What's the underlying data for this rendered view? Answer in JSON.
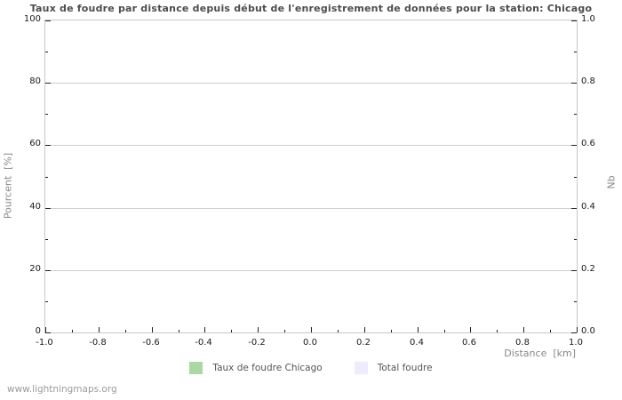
{
  "title": "Taux de foudre par distance depuis début de l'enregistrement de données pour la station: Chicago",
  "footer": "www.lightningmaps.org",
  "colors": {
    "title_text": "#4d4d4d",
    "grid": "#cdcdcd",
    "plot_border": "#c8c8c8",
    "tick_mark": "#222222",
    "tick_label": "#1a1a1a",
    "axis_label": "#878787",
    "legend_text": "#555555",
    "footer_text": "#9b9b9b",
    "series_rate_green": "#abd7a5",
    "series_total_lavender": "#ececfa"
  },
  "axes": {
    "ylabel_left": "Pourcent  [%]",
    "ylabel_right": "Nb",
    "xlabel": "Distance  [km]"
  },
  "legend": {
    "items": [
      {
        "label": "Taux de foudre Chicago",
        "color": "#abd7a5"
      },
      {
        "label": "Total foudre",
        "color": "#ececfa"
      }
    ]
  },
  "chart_data": {
    "type": "line",
    "title": "Taux de foudre par distance depuis début de l'enregistrement de données pour la station: Chicago",
    "xlabel": "Distance  [km]",
    "ylabel_left": "Pourcent  [%]",
    "ylabel_right": "Nb",
    "xlim": [
      -1.0,
      1.0
    ],
    "ylim_left": [
      0,
      100
    ],
    "ylim_right": [
      0.0,
      1.0
    ],
    "x_major_ticks": [
      "-1.0",
      "-0.8",
      "-0.6",
      "-0.4",
      "-0.2",
      "0.0",
      "0.2",
      "0.4",
      "0.6",
      "0.8",
      "1.0"
    ],
    "x_minor_step": 0.1,
    "y_left_ticks": [
      "0",
      "20",
      "40",
      "60",
      "80",
      "100"
    ],
    "y_left_minor_ticks": [
      10,
      30,
      50,
      70,
      90
    ],
    "y_right_ticks": [
      "0.0",
      "0.2",
      "0.4",
      "0.6",
      "0.8",
      "1.0"
    ],
    "grid": "horizontal-major-only",
    "legend_position": "bottom-center",
    "series": [
      {
        "name": "Taux de foudre Chicago",
        "color": "#abd7a5",
        "x": [],
        "values": []
      },
      {
        "name": "Total foudre",
        "color": "#ececfa",
        "x": [],
        "values": []
      }
    ],
    "plot_is_empty": true
  }
}
